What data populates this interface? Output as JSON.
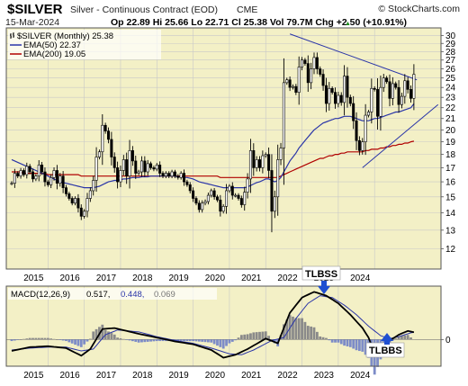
{
  "header": {
    "symbol": "$SILVER",
    "description": "Silver - Continuous Contract (EOD)",
    "exchange": "CME",
    "date": "15-Mar-2024",
    "ohlc": "Op 22.89 Hi 25.66 Lo 22.71 Cl 25.38 Vol 79.7M Chg +2.50 (+10.91%)",
    "chg_arrow": "▲",
    "watermark": "© StockCharts.com"
  },
  "legend": {
    "price": "$SILVER (Monthly) 25.38",
    "ema50": "EMA(50) 22.37",
    "ema200": "EMA(200) 19.05"
  },
  "macd_legend": {
    "label": "MACD(12,26,9)",
    "macd": "0.517,",
    "signal": "0.448,",
    "hist": "0.069"
  },
  "annotations": {
    "tlbss": "TLBSS",
    "tlbbs": "TLBBS"
  },
  "colors": {
    "plot_bg": "#f3f0c6",
    "grid": "#c8c8c8",
    "candle": "#000000",
    "ema50": "#2a35a8",
    "ema200": "#b00000",
    "trendline": "#2a35a8",
    "hist": "#8a8a8a",
    "hist_neg": "#7d8cc8",
    "arrow": "#1f4fd1"
  },
  "chart_data": [
    {
      "type": "candlestick",
      "title": "$SILVER (Monthly)",
      "x_ticks": [
        "2015",
        "2016",
        "2017",
        "2018",
        "2019",
        "2020",
        "2021",
        "2022",
        "2023",
        "2024"
      ],
      "y_ticks": [
        12,
        13,
        14,
        15,
        16,
        17,
        18,
        19,
        20,
        21,
        22,
        23,
        24,
        25,
        26,
        27,
        28,
        29,
        30
      ],
      "ylim": [
        11,
        31
      ],
      "y_scale": "log",
      "grid": true,
      "close": [
        15.9,
        16.6,
        16.4,
        16.8,
        16.5,
        17.1,
        16.7,
        16.2,
        16.4,
        17.2,
        16.7,
        16.0,
        15.8,
        16.3,
        16.8,
        15.9,
        16.4,
        15.6,
        15.2,
        14.9,
        14.6,
        14.9,
        14.3,
        13.8,
        14.1,
        14.9,
        15.4,
        16.1,
        17.8,
        18.2,
        20.4,
        19.9,
        19.2,
        17.8,
        17.0,
        16.0,
        16.8,
        17.6,
        16.4,
        18.3,
        17.5,
        16.6,
        16.7,
        17.5,
        16.7,
        17.3,
        17.0,
        16.9,
        17.2,
        16.6,
        16.4,
        16.6,
        16.4,
        16.7,
        16.4,
        16.3,
        16.6,
        16.0,
        15.8,
        15.4,
        14.9,
        14.6,
        14.2,
        14.6,
        14.7,
        15.1,
        15.4,
        15.0,
        14.8,
        14.1,
        14.4,
        15.4,
        15.7,
        15.1,
        15.1,
        14.9,
        14.5,
        15.3,
        16.2,
        18.3,
        17.0,
        17.6,
        17.0,
        17.9,
        18.0,
        16.8,
        14.1,
        15.0,
        17.6,
        18.5,
        24.5,
        24.8,
        24.0,
        24.1,
        23.5,
        26.2,
        27.0,
        26.6,
        24.5,
        26.0,
        27.3,
        26.0,
        25.4,
        24.2,
        22.4,
        23.9,
        23.5,
        22.4,
        23.2,
        22.5,
        25.2,
        23.0,
        22.4,
        20.8,
        19.1,
        18.3,
        19.0,
        21.3,
        21.6,
        23.9,
        23.8,
        21.2,
        24.0,
        25.0,
        24.6,
        22.9,
        24.4,
        24.0,
        22.3,
        23.1,
        24.7,
        23.8,
        22.9,
        25.4
      ],
      "ema50": [
        17.6,
        17.5,
        17.4,
        17.3,
        17.2,
        17.1,
        17.0,
        16.9,
        16.8,
        16.7,
        16.6,
        16.5,
        16.4,
        16.3,
        16.2,
        16.1,
        16.0,
        15.95,
        15.9,
        15.85,
        15.8,
        15.75,
        15.7,
        15.65,
        15.6,
        15.6,
        15.6,
        15.6,
        15.65,
        15.7,
        15.8,
        15.9,
        16.0,
        16.05,
        16.1,
        16.1,
        16.15,
        16.2,
        16.2,
        16.25,
        16.3,
        16.3,
        16.3,
        16.35,
        16.35,
        16.35,
        16.4,
        16.4,
        16.4,
        16.4,
        16.4,
        16.4,
        16.4,
        16.4,
        16.4,
        16.35,
        16.35,
        16.3,
        16.3,
        16.25,
        16.2,
        16.1,
        16.0,
        15.95,
        15.9,
        15.85,
        15.8,
        15.75,
        15.7,
        15.65,
        15.6,
        15.6,
        15.6,
        15.6,
        15.6,
        15.6,
        15.6,
        15.6,
        15.65,
        15.75,
        15.85,
        15.95,
        16.0,
        16.1,
        16.2,
        16.2,
        16.1,
        16.0,
        16.1,
        16.3,
        16.7,
        17.1,
        17.5,
        17.8,
        18.1,
        18.5,
        18.8,
        19.1,
        19.4,
        19.7,
        20.0,
        20.2,
        20.4,
        20.6,
        20.7,
        20.8,
        20.9,
        21.0,
        21.0,
        21.1,
        21.2,
        21.2,
        21.2,
        21.1,
        21.0,
        20.9,
        20.8,
        20.8,
        20.8,
        20.9,
        21.0,
        21.0,
        21.1,
        21.2,
        21.3,
        21.4,
        21.5,
        21.6,
        21.6,
        21.7,
        21.8,
        21.9,
        22.0,
        22.37
      ],
      "ema200": [
        16.7,
        16.7,
        16.7,
        16.7,
        16.6,
        16.6,
        16.6,
        16.6,
        16.6,
        16.6,
        16.6,
        16.6,
        16.5,
        16.5,
        16.5,
        16.5,
        16.5,
        16.5,
        16.5,
        16.5,
        16.5,
        16.5,
        16.5,
        16.4,
        16.4,
        16.4,
        16.4,
        16.4,
        16.4,
        16.4,
        16.4,
        16.4,
        16.4,
        16.4,
        16.4,
        16.4,
        16.4,
        16.4,
        16.4,
        16.4,
        16.4,
        16.4,
        16.4,
        16.4,
        16.4,
        16.4,
        16.4,
        16.4,
        16.4,
        16.4,
        16.4,
        16.4,
        16.4,
        16.4,
        16.4,
        16.4,
        16.4,
        16.4,
        16.4,
        16.4,
        16.4,
        16.4,
        16.4,
        16.4,
        16.4,
        16.4,
        16.4,
        16.4,
        16.4,
        16.3,
        16.3,
        16.3,
        16.3,
        16.3,
        16.3,
        16.3,
        16.3,
        16.3,
        16.3,
        16.3,
        16.3,
        16.3,
        16.3,
        16.3,
        16.3,
        16.3,
        16.3,
        16.3,
        16.3,
        16.4,
        16.5,
        16.6,
        16.7,
        16.8,
        16.9,
        17.0,
        17.1,
        17.2,
        17.3,
        17.4,
        17.5,
        17.6,
        17.7,
        17.7,
        17.8,
        17.9,
        17.9,
        18.0,
        18.0,
        18.1,
        18.1,
        18.2,
        18.2,
        18.2,
        18.2,
        18.2,
        18.2,
        18.3,
        18.3,
        18.4,
        18.4,
        18.4,
        18.5,
        18.5,
        18.6,
        18.6,
        18.7,
        18.7,
        18.8,
        18.8,
        18.9,
        18.9,
        19.0,
        19.05
      ]
    },
    {
      "type": "line",
      "title": "MACD(12,26,9)",
      "x_ticks": [
        "2015",
        "2016",
        "2017",
        "2018",
        "2019",
        "2020",
        "2021",
        "2022",
        "2023",
        "2024"
      ],
      "y_ticks": [
        0
      ],
      "ylim": [
        -1.4,
        2.8
      ],
      "macd_knots": [
        [
          0,
          -0.6
        ],
        [
          6,
          -0.4
        ],
        [
          12,
          -0.35
        ],
        [
          18,
          -0.45
        ],
        [
          23,
          -0.85
        ],
        [
          26,
          -0.5
        ],
        [
          30,
          0.55
        ],
        [
          34,
          0.6
        ],
        [
          42,
          0.3
        ],
        [
          48,
          0.1
        ],
        [
          54,
          -0.1
        ],
        [
          60,
          -0.25
        ],
        [
          66,
          -0.55
        ],
        [
          70,
          -0.95
        ],
        [
          74,
          -0.8
        ],
        [
          78,
          -0.5
        ],
        [
          84,
          0.05
        ],
        [
          88,
          -0.2
        ],
        [
          92,
          1.4
        ],
        [
          96,
          2.2
        ],
        [
          100,
          2.5
        ],
        [
          104,
          2.3
        ],
        [
          108,
          1.9
        ],
        [
          112,
          1.3
        ],
        [
          116,
          0.6
        ],
        [
          118,
          0.1
        ],
        [
          120,
          -0.7
        ],
        [
          122,
          -0.45
        ],
        [
          125,
          -0.05
        ],
        [
          128,
          0.25
        ],
        [
          131,
          0.45
        ],
        [
          134,
          0.35
        ],
        [
          137,
          0.55
        ],
        [
          140,
          0.45
        ],
        [
          141,
          0.517
        ]
      ],
      "signal_knots": [
        [
          0,
          -0.55
        ],
        [
          6,
          -0.45
        ],
        [
          12,
          -0.4
        ],
        [
          18,
          -0.4
        ],
        [
          23,
          -0.6
        ],
        [
          27,
          -0.5
        ],
        [
          31,
          0.25
        ],
        [
          35,
          0.5
        ],
        [
          42,
          0.4
        ],
        [
          48,
          0.15
        ],
        [
          54,
          -0.05
        ],
        [
          60,
          -0.2
        ],
        [
          66,
          -0.45
        ],
        [
          72,
          -0.75
        ],
        [
          76,
          -0.8
        ],
        [
          80,
          -0.55
        ],
        [
          86,
          -0.05
        ],
        [
          90,
          0.1
        ],
        [
          94,
          1.1
        ],
        [
          98,
          1.9
        ],
        [
          102,
          2.3
        ],
        [
          106,
          2.2
        ],
        [
          110,
          1.8
        ],
        [
          114,
          1.3
        ],
        [
          118,
          0.7
        ],
        [
          122,
          0.2
        ],
        [
          125,
          0.05
        ],
        [
          128,
          0.15
        ],
        [
          132,
          0.35
        ],
        [
          136,
          0.45
        ],
        [
          141,
          0.448
        ]
      ]
    }
  ]
}
